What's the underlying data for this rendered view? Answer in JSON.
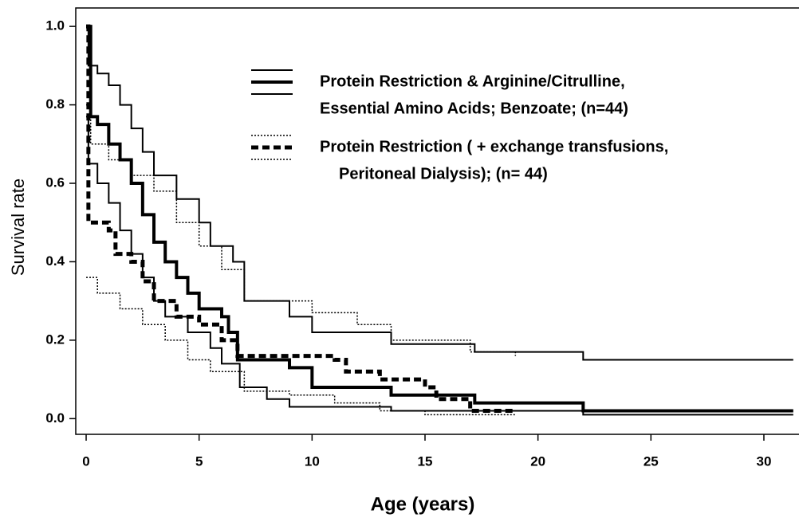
{
  "chart_data": {
    "type": "step",
    "x_label": "Age (years)",
    "y_label": "Survival rate",
    "xlim": [
      -0.46,
      31.66
    ],
    "ylim": [
      -0.04,
      1.047
    ],
    "xticks": [
      0,
      5,
      10,
      15,
      20,
      25,
      30
    ],
    "yticks": [
      {
        "value": 0,
        "label": "0.0"
      },
      0.2,
      0.4,
      0.6,
      0.8,
      {
        "value": 1,
        "label": "1.0"
      }
    ],
    "color": "#000000",
    "legend": "upper right",
    "series": [
      {
        "name": [
          "Protein Restriction & Arginine/Citrulline,",
          "Essential Amino Acids; Benzoate; (n=44)"
        ],
        "style": "solid",
        "width": 4,
        "x": [
          0,
          0.2,
          0.5,
          1,
          1.5,
          2,
          2.5,
          3,
          3.5,
          4,
          4.5,
          5,
          6,
          6.3,
          6.7,
          9,
          10,
          13.5,
          17.2,
          22,
          31.3
        ],
        "values": [
          1.0,
          0.77,
          0.75,
          0.7,
          0.66,
          0.6,
          0.52,
          0.45,
          0.4,
          0.36,
          0.32,
          0.28,
          0.26,
          0.22,
          0.15,
          0.13,
          0.08,
          0.06,
          0.04,
          0.02,
          0.02
        ]
      },
      {
        "style": "solid",
        "width": 2,
        "x": [
          0,
          0.1,
          0.5,
          1,
          1.5,
          2,
          2.5,
          3,
          4,
          5,
          5.5,
          6.5,
          7,
          9,
          10,
          13.5,
          17.2,
          22,
          31.3
        ],
        "values": [
          1.0,
          0.9,
          0.88,
          0.85,
          0.8,
          0.74,
          0.68,
          0.62,
          0.56,
          0.5,
          0.44,
          0.4,
          0.3,
          0.26,
          0.22,
          0.19,
          0.17,
          0.15,
          0.15
        ]
      },
      {
        "style": "solid",
        "width": 2,
        "x": [
          0,
          0.1,
          0.5,
          1,
          1.5,
          2,
          2.5,
          3,
          3.5,
          4.5,
          5.5,
          6,
          6.8,
          8,
          9,
          13.5,
          22,
          31.3
        ],
        "values": [
          0.77,
          0.65,
          0.6,
          0.55,
          0.48,
          0.42,
          0.36,
          0.3,
          0.26,
          0.22,
          0.18,
          0.14,
          0.08,
          0.05,
          0.03,
          0.02,
          0.01,
          0.01
        ]
      },
      {
        "name": [
          "Protein Restriction ( + exchange transfusions,",
          "Peritoneal Dialysis); (n= 44)"
        ],
        "style": "dashed",
        "width": 5,
        "x": [
          0,
          0.1,
          1,
          1.3,
          2,
          2.5,
          3,
          4,
          5,
          6,
          6.7,
          11,
          11.5,
          13,
          15,
          15.5,
          17,
          19
        ],
        "values": [
          1.0,
          0.5,
          0.48,
          0.42,
          0.4,
          0.35,
          0.3,
          0.26,
          0.24,
          0.2,
          0.16,
          0.15,
          0.12,
          0.1,
          0.08,
          0.05,
          0.02,
          0.02
        ]
      },
      {
        "style": "dotted",
        "width": 1.5,
        "x": [
          0,
          0.2,
          1,
          2,
          3,
          4,
          5,
          6,
          7,
          10,
          12,
          13.5,
          17,
          19
        ],
        "values": [
          0.8,
          0.7,
          0.66,
          0.62,
          0.58,
          0.5,
          0.44,
          0.38,
          0.3,
          0.27,
          0.24,
          0.2,
          0.17,
          0.16
        ]
      },
      {
        "style": "dotted",
        "width": 1.5,
        "x": [
          0,
          0.5,
          1.5,
          2.5,
          3.5,
          4.5,
          5.5,
          7,
          9,
          11,
          13,
          15,
          19
        ],
        "values": [
          0.36,
          0.32,
          0.28,
          0.24,
          0.2,
          0.15,
          0.12,
          0.07,
          0.06,
          0.04,
          0.02,
          0.01,
          0.01
        ]
      }
    ]
  }
}
